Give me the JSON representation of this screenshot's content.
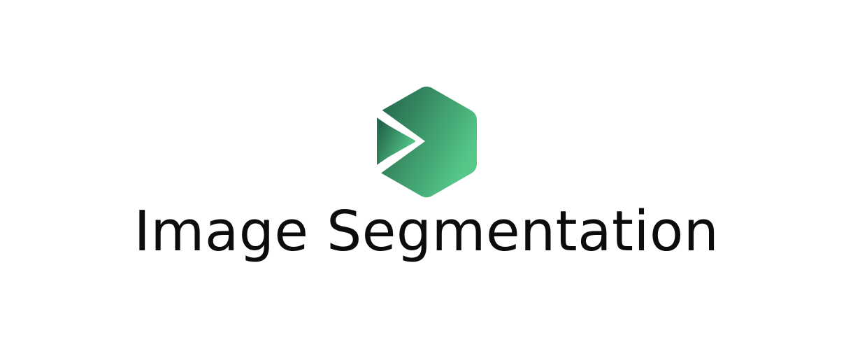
{
  "title": "Image Segmentation",
  "logo": {
    "icon": "play-hexagon-icon",
    "gradient_start": "#1f5e45",
    "gradient_end": "#56c98a",
    "cutout_color": "#ffffff"
  },
  "colors": {
    "background": "#ffffff",
    "text": "#0c0c0c"
  }
}
